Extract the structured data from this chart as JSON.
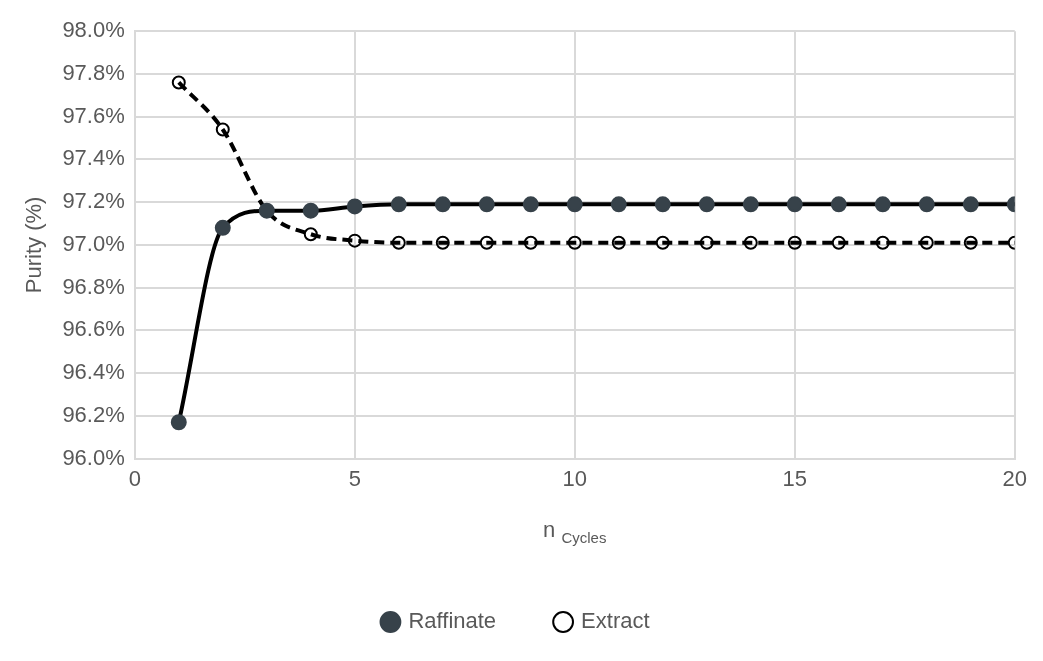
{
  "chart_data": {
    "type": "line",
    "xlabel": "n $_{Cycles}$",
    "ylabel": "Purity (%)",
    "xlim": [
      0,
      20
    ],
    "xticks": [
      0,
      5,
      10,
      15,
      20
    ],
    "ylim": [
      96.0,
      98.0
    ],
    "yticks": [
      {
        "value": 96.0,
        "label": "96.0%"
      },
      {
        "value": 96.2,
        "label": "96.2%"
      },
      {
        "value": 96.4,
        "label": "96.4%"
      },
      {
        "value": 96.6,
        "label": "96.6%"
      },
      {
        "value": 96.8,
        "label": "96.8%"
      },
      {
        "value": 97.0,
        "label": "97.0%"
      },
      {
        "value": 97.2,
        "label": "97.2%"
      },
      {
        "value": 97.4,
        "label": "97.4%"
      },
      {
        "value": 97.6,
        "label": "97.6%"
      },
      {
        "value": 97.8,
        "label": "97.8%"
      },
      {
        "value": 98.0,
        "label": "98.0%"
      }
    ],
    "x": [
      1,
      2,
      3,
      4,
      5,
      6,
      7,
      8,
      9,
      10,
      11,
      12,
      13,
      14,
      15,
      16,
      17,
      18,
      19,
      20
    ],
    "grid": true,
    "legend": "bottom",
    "series": [
      {
        "name": "Raffinate",
        "color": "#000000",
        "marker": "circle",
        "line_style": "solid",
        "values": [
          96.17,
          97.08,
          97.16,
          97.16,
          97.18,
          97.19,
          97.19,
          97.19,
          97.19,
          97.19,
          97.19,
          97.19,
          97.19,
          97.19,
          97.19,
          97.19,
          97.19,
          97.19,
          97.19,
          97.19
        ]
      },
      {
        "name": "Extract",
        "color": "#000000",
        "marker": "circle",
        "line_style": "dashed",
        "values": [
          97.76,
          97.54,
          97.16,
          97.05,
          97.02,
          97.01,
          97.01,
          97.01,
          97.01,
          97.01,
          97.01,
          97.01,
          97.01,
          97.01,
          97.01,
          97.01,
          97.01,
          97.01,
          97.01,
          97.01
        ]
      }
    ]
  }
}
